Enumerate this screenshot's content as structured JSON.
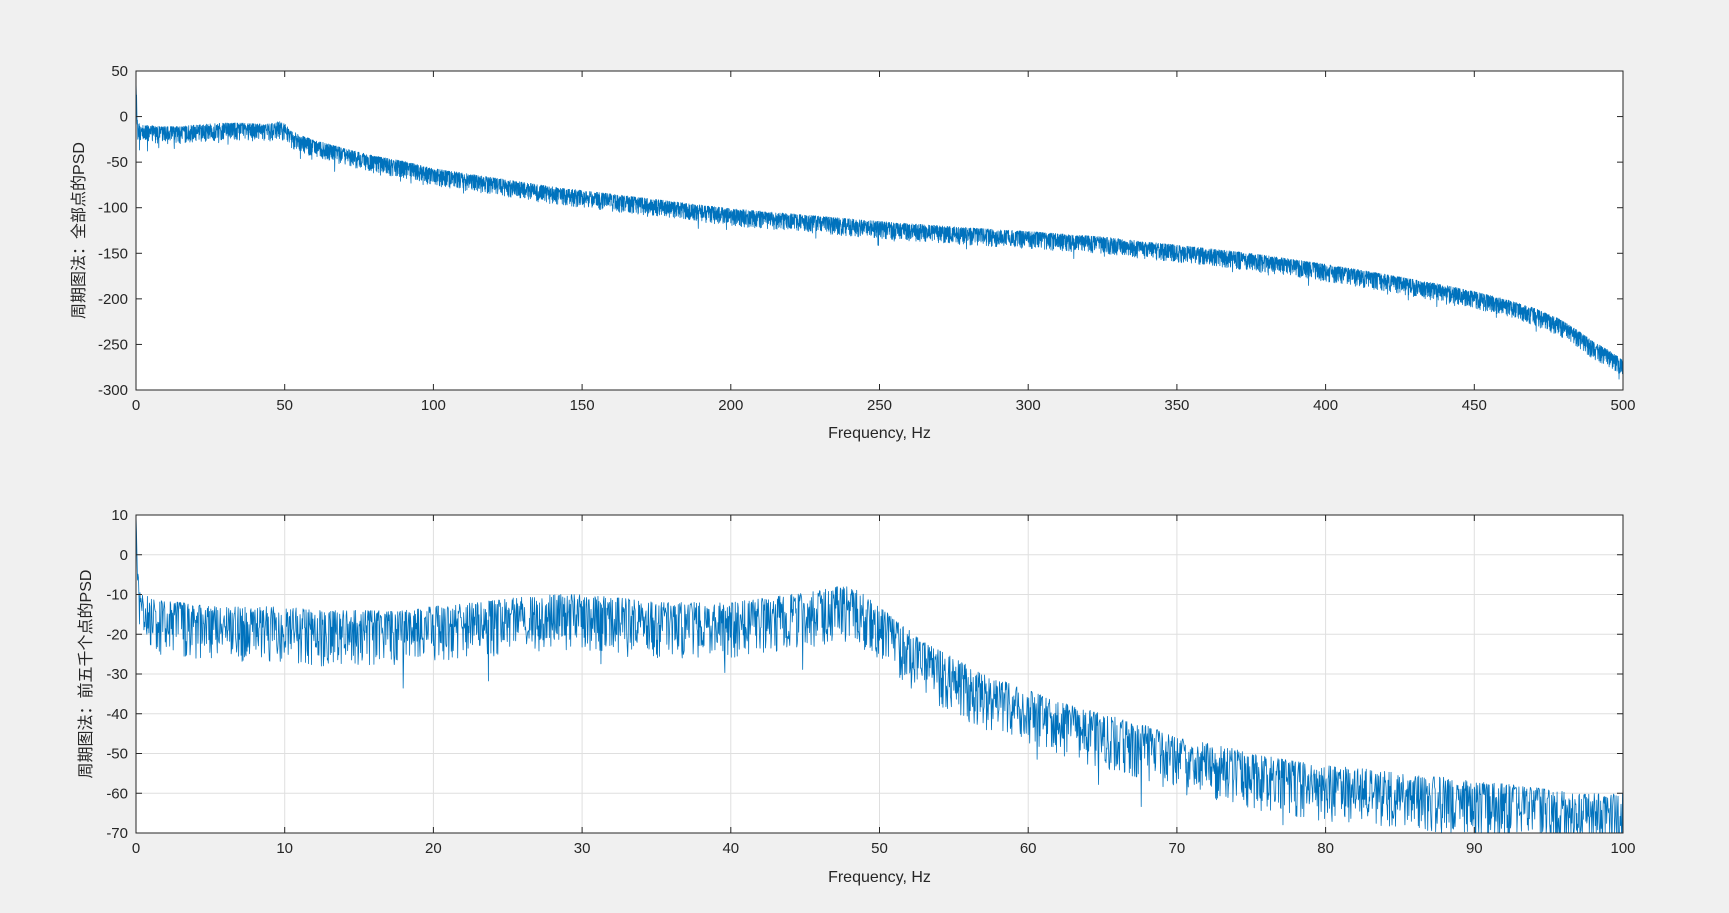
{
  "figure": {
    "background": "#f0f0f0",
    "axes_background": "#ffffff",
    "line_color": "#0072bd"
  },
  "chart_data": [
    {
      "type": "line",
      "xlabel": "Frequency, Hz",
      "ylabel": "周期图法：全部点的PSD",
      "xlim": [
        0,
        500
      ],
      "ylim": [
        -300,
        50
      ],
      "xticks": [
        0,
        50,
        100,
        150,
        200,
        250,
        300,
        350,
        400,
        450,
        500
      ],
      "yticks": [
        50,
        0,
        -50,
        -100,
        -150,
        -200,
        -250,
        -300
      ],
      "grid": false,
      "series": [
        {
          "name": "PSD",
          "x": [
            0,
            0.5,
            2,
            5,
            10,
            15,
            20,
            25,
            30,
            35,
            40,
            45,
            48,
            50,
            52,
            55,
            60,
            65,
            70,
            80,
            90,
            100,
            110,
            120,
            130,
            140,
            150,
            160,
            175,
            190,
            200,
            225,
            250,
            275,
            300,
            325,
            350,
            375,
            400,
            420,
            440,
            450,
            460,
            470,
            478,
            485,
            490,
            495,
            500
          ],
          "y": [
            40,
            -12,
            -14,
            -15,
            -16,
            -16,
            -14,
            -13,
            -12,
            -12,
            -13,
            -13,
            -10,
            -13,
            -20,
            -25,
            -31,
            -35,
            -40,
            -48,
            -54,
            -62,
            -67,
            -72,
            -77,
            -82,
            -86,
            -90,
            -96,
            -102,
            -106,
            -113,
            -120,
            -126,
            -131,
            -137,
            -146,
            -155,
            -167,
            -178,
            -190,
            -197,
            -205,
            -215,
            -226,
            -240,
            -252,
            -261,
            -272
          ],
          "spread_lower": 14,
          "spread_upper": 5
        }
      ]
    },
    {
      "type": "line",
      "xlabel": "Frequency, Hz",
      "ylabel": "周期图法：前五千个点的PSD",
      "xlim": [
        0,
        100
      ],
      "ylim": [
        -70,
        10
      ],
      "xticks": [
        0,
        10,
        20,
        30,
        40,
        50,
        60,
        70,
        80,
        90,
        100
      ],
      "yticks": [
        10,
        0,
        -10,
        -20,
        -30,
        -40,
        -50,
        -60,
        -70
      ],
      "grid": true,
      "series": [
        {
          "name": "PSD",
          "x": [
            0,
            0.2,
            1,
            3,
            5,
            8,
            10,
            12,
            15,
            18,
            20,
            23,
            25,
            28,
            30,
            33,
            35,
            38,
            40,
            42,
            44,
            46,
            47,
            48,
            49,
            50,
            51,
            52,
            53,
            55,
            57,
            60,
            62,
            65,
            68,
            70,
            73,
            75,
            78,
            80,
            83,
            85,
            88,
            90,
            93,
            95,
            97,
            100
          ],
          "y": [
            10,
            -14,
            -16,
            -17,
            -18,
            -18,
            -18,
            -19,
            -19,
            -19,
            -18,
            -17,
            -16,
            -15,
            -15,
            -16,
            -17,
            -17,
            -17,
            -16,
            -15,
            -14,
            -13,
            -13,
            -15,
            -18,
            -21,
            -24,
            -27,
            -31,
            -35,
            -39,
            -42,
            -45,
            -48,
            -51,
            -53,
            -55,
            -57,
            -58,
            -59,
            -60,
            -61,
            -62,
            -63,
            -64,
            -65,
            -65
          ],
          "spread_lower": 9,
          "spread_upper": 5
        }
      ]
    }
  ]
}
